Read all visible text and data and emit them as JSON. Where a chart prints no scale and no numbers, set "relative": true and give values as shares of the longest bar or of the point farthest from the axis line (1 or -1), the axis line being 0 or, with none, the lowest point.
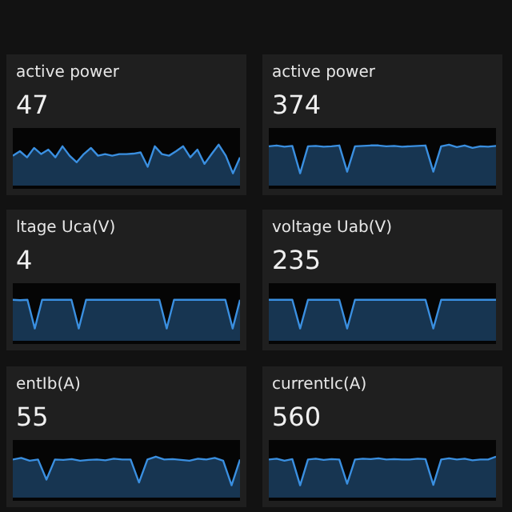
{
  "chart_data": [
    {
      "type": "area",
      "relative": true,
      "title": "active power",
      "annotations": [
        "47"
      ],
      "categories": [
        null,
        null,
        null,
        null,
        null,
        null,
        null,
        null,
        null,
        null,
        null,
        null,
        null,
        null,
        null,
        null,
        null,
        null,
        null,
        null,
        null,
        null,
        null,
        null,
        null,
        null,
        null,
        null,
        null,
        null,
        null,
        null,
        null
      ],
      "series": [
        {
          "color": "#3a8fe0",
          "values": [
            0.73,
            0.84,
            0.69,
            0.92,
            0.77,
            0.88,
            0.69,
            0.96,
            0.73,
            0.57,
            0.77,
            0.92,
            0.73,
            0.77,
            0.73,
            0.77,
            0.77,
            0.78,
            0.81,
            0.46,
            0.96,
            0.77,
            0.73,
            0.84,
            0.96,
            0.69,
            0.88,
            0.53,
            0.77,
            1,
            0.73,
            0.3,
            0.69
          ]
        }
      ]
    },
    {
      "type": "area",
      "relative": true,
      "title": "active power",
      "annotations": [
        "374"
      ],
      "categories": [
        null,
        null,
        null,
        null,
        null,
        null,
        null,
        null,
        null,
        null,
        null,
        null,
        null,
        null,
        null,
        null,
        null,
        null,
        null,
        null,
        null,
        null,
        null,
        null,
        null,
        null,
        null,
        null,
        null,
        null
      ],
      "series": [
        {
          "color": "#3a8fe0",
          "values": [
            0.96,
            0.98,
            0.95,
            0.97,
            0.3,
            0.96,
            0.97,
            0.95,
            0.96,
            0.98,
            0.34,
            0.96,
            0.97,
            0.98,
            0.98,
            0.96,
            0.97,
            0.95,
            0.96,
            0.97,
            0.98,
            0.34,
            0.96,
            1,
            0.94,
            0.98,
            0.92,
            0.96,
            0.95,
            0.97
          ]
        }
      ]
    },
    {
      "type": "area",
      "relative": true,
      "title": "ltage Uca(V)",
      "annotations": [
        "4"
      ],
      "categories": [
        null,
        null,
        null,
        null,
        null,
        null,
        null,
        null,
        null,
        null,
        null,
        null,
        null,
        null,
        null,
        null,
        null,
        null,
        null,
        null,
        null,
        null,
        null,
        null,
        null,
        null,
        null,
        null,
        null,
        null,
        null,
        null
      ],
      "series": [
        {
          "color": "#3a8fe0",
          "values": [
            1,
            0.99,
            1,
            0.3,
            1,
            1,
            1,
            1,
            1,
            0.3,
            1,
            1,
            1,
            1,
            1,
            1,
            1,
            1,
            1,
            1,
            1,
            0.3,
            1,
            1,
            1,
            1,
            1,
            1,
            1,
            1,
            0.3,
            1
          ]
        }
      ]
    },
    {
      "type": "area",
      "relative": true,
      "title": "voltage Uab(V)",
      "annotations": [
        "235"
      ],
      "categories": [
        null,
        null,
        null,
        null,
        null,
        null,
        null,
        null,
        null,
        null,
        null,
        null,
        null,
        null,
        null,
        null,
        null,
        null,
        null,
        null,
        null,
        null,
        null,
        null,
        null,
        null,
        null,
        null,
        null,
        null
      ],
      "series": [
        {
          "color": "#3a8fe0",
          "values": [
            1,
            1,
            1,
            1,
            0.3,
            1,
            1,
            1,
            1,
            1,
            0.3,
            1,
            1,
            1,
            1,
            1,
            1,
            1,
            1,
            1,
            1,
            0.3,
            1,
            1,
            1,
            1,
            1,
            1,
            1,
            1
          ]
        }
      ]
    },
    {
      "type": "area",
      "relative": true,
      "title": "entIb(A)",
      "annotations": [
        "55"
      ],
      "categories": [
        null,
        null,
        null,
        null,
        null,
        null,
        null,
        null,
        null,
        null,
        null,
        null,
        null,
        null,
        null,
        null,
        null,
        null,
        null,
        null,
        null,
        null,
        null,
        null,
        null,
        null,
        null,
        null
      ],
      "series": [
        {
          "color": "#3a8fe0",
          "values": [
            0.93,
            0.97,
            0.9,
            0.93,
            0.44,
            0.93,
            0.92,
            0.94,
            0.9,
            0.92,
            0.93,
            0.91,
            0.95,
            0.93,
            0.93,
            0.37,
            0.93,
            1,
            0.93,
            0.94,
            0.92,
            0.9,
            0.95,
            0.93,
            0.97,
            0.9,
            0.3,
            0.93
          ]
        }
      ]
    },
    {
      "type": "area",
      "relative": true,
      "title": "currentIc(A)",
      "annotations": [
        "560"
      ],
      "categories": [
        null,
        null,
        null,
        null,
        null,
        null,
        null,
        null,
        null,
        null,
        null,
        null,
        null,
        null,
        null,
        null,
        null,
        null,
        null,
        null,
        null,
        null,
        null,
        null,
        null,
        null,
        null,
        null,
        null,
        null
      ],
      "series": [
        {
          "color": "#3a8fe0",
          "values": [
            0.93,
            0.95,
            0.9,
            0.94,
            0.3,
            0.93,
            0.95,
            0.92,
            0.94,
            0.93,
            0.34,
            0.93,
            0.95,
            0.94,
            0.96,
            0.93,
            0.94,
            0.93,
            0.93,
            0.95,
            0.94,
            0.31,
            0.93,
            0.96,
            0.93,
            0.95,
            0.91,
            0.93,
            0.93,
            1
          ]
        }
      ]
    }
  ]
}
